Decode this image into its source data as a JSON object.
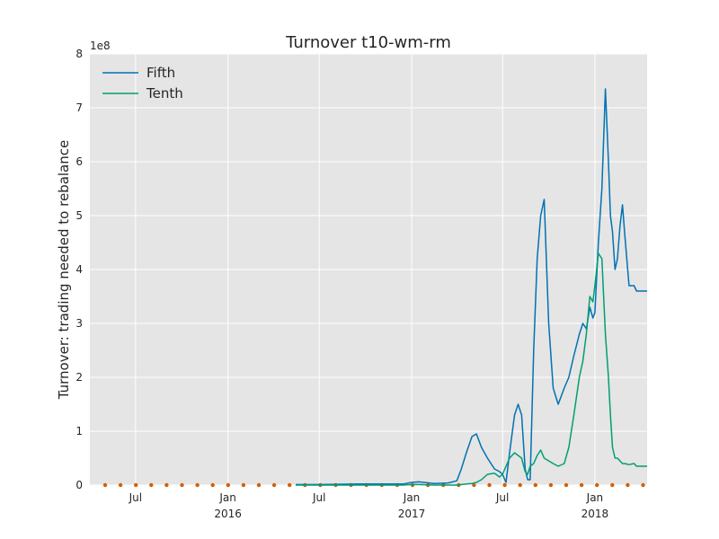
{
  "chart_data": {
    "type": "line",
    "title": "Turnover t10-wm-rm",
    "xlabel": "",
    "ylabel": "Turnover: trading needed to rebalance",
    "y_multiplier_label": "1e8",
    "ylim": [
      0,
      8
    ],
    "xlim": [
      "2015-04-01",
      "2018-04-15"
    ],
    "y_ticks": [
      0,
      1,
      2,
      3,
      4,
      5,
      6,
      7,
      8
    ],
    "x_ticks": [
      {
        "date": "2015-07-01",
        "label": "Jul",
        "sublabel": ""
      },
      {
        "date": "2016-01-01",
        "label": "Jan",
        "sublabel": "2016"
      },
      {
        "date": "2016-07-01",
        "label": "Jul",
        "sublabel": ""
      },
      {
        "date": "2017-01-01",
        "label": "Jan",
        "sublabel": "2017"
      },
      {
        "date": "2017-07-01",
        "label": "Jul",
        "sublabel": ""
      },
      {
        "date": "2018-01-01",
        "label": "Jan",
        "sublabel": "2018"
      }
    ],
    "grid": true,
    "legend_position": "top-left",
    "background_color": "#e5e5e5",
    "series": [
      {
        "name": "Fifth",
        "color": "#0072b2",
        "x": [
          "2016-05-15",
          "2016-07-01",
          "2016-09-15",
          "2016-11-01",
          "2016-12-15",
          "2017-01-01",
          "2017-01-15",
          "2017-02-15",
          "2017-03-15",
          "2017-04-01",
          "2017-04-10",
          "2017-04-20",
          "2017-05-01",
          "2017-05-10",
          "2017-05-20",
          "2017-06-01",
          "2017-06-15",
          "2017-06-25",
          "2017-07-01",
          "2017-07-08",
          "2017-07-15",
          "2017-07-25",
          "2017-08-01",
          "2017-08-08",
          "2017-08-15",
          "2017-08-20",
          "2017-08-25",
          "2017-09-01",
          "2017-09-08",
          "2017-09-15",
          "2017-09-22",
          "2017-10-01",
          "2017-10-10",
          "2017-10-20",
          "2017-11-01",
          "2017-11-10",
          "2017-11-20",
          "2017-12-01",
          "2017-12-08",
          "2017-12-15",
          "2017-12-22",
          "2017-12-28",
          "2018-01-01",
          "2018-01-08",
          "2018-01-15",
          "2018-01-22",
          "2018-01-28",
          "2018-02-01",
          "2018-02-05",
          "2018-02-10",
          "2018-02-15",
          "2018-02-20",
          "2018-02-25",
          "2018-03-01",
          "2018-03-10",
          "2018-03-20",
          "2018-03-25",
          "2018-04-01",
          "2018-04-10",
          "2018-04-15"
        ],
        "values": [
          0.01,
          0.01,
          0.02,
          0.02,
          0.02,
          0.05,
          0.06,
          0.03,
          0.04,
          0.08,
          0.3,
          0.6,
          0.9,
          0.95,
          0.7,
          0.5,
          0.3,
          0.25,
          0.2,
          0.05,
          0.6,
          1.3,
          1.5,
          1.3,
          0.3,
          0.1,
          0.1,
          2.5,
          4.2,
          5.0,
          5.3,
          3.0,
          1.8,
          1.5,
          1.8,
          2.0,
          2.4,
          2.8,
          3.0,
          2.9,
          3.3,
          3.1,
          3.2,
          4.5,
          5.5,
          7.35,
          6.0,
          5.0,
          4.7,
          4.0,
          4.2,
          4.8,
          5.2,
          4.7,
          3.7,
          3.7,
          3.6,
          3.6,
          3.6,
          3.6
        ]
      },
      {
        "name": "Tenth",
        "color": "#009e73",
        "x": [
          "2016-05-15",
          "2016-07-01",
          "2016-09-15",
          "2016-11-01",
          "2016-12-15",
          "2017-01-01",
          "2017-01-15",
          "2017-02-15",
          "2017-03-15",
          "2017-04-01",
          "2017-04-20",
          "2017-05-01",
          "2017-05-10",
          "2017-05-20",
          "2017-06-01",
          "2017-06-15",
          "2017-06-25",
          "2017-07-01",
          "2017-07-08",
          "2017-07-15",
          "2017-07-25",
          "2017-08-01",
          "2017-08-08",
          "2017-08-15",
          "2017-08-20",
          "2017-08-25",
          "2017-09-01",
          "2017-09-08",
          "2017-09-15",
          "2017-09-22",
          "2017-10-01",
          "2017-10-10",
          "2017-10-20",
          "2017-11-01",
          "2017-11-10",
          "2017-11-20",
          "2017-12-01",
          "2017-12-08",
          "2017-12-15",
          "2017-12-22",
          "2017-12-28",
          "2018-01-01",
          "2018-01-08",
          "2018-01-15",
          "2018-01-22",
          "2018-01-28",
          "2018-02-01",
          "2018-02-05",
          "2018-02-10",
          "2018-02-15",
          "2018-02-20",
          "2018-02-25",
          "2018-03-01",
          "2018-03-10",
          "2018-03-20",
          "2018-03-25",
          "2018-04-01",
          "2018-04-10",
          "2018-04-15"
        ],
        "values": [
          0.0,
          0.0,
          0.0,
          0.0,
          0.0,
          0.01,
          0.01,
          0.0,
          0.0,
          0.0,
          0.02,
          0.03,
          0.05,
          0.1,
          0.2,
          0.22,
          0.15,
          0.2,
          0.35,
          0.5,
          0.6,
          0.55,
          0.5,
          0.25,
          0.2,
          0.35,
          0.4,
          0.55,
          0.65,
          0.5,
          0.45,
          0.4,
          0.35,
          0.4,
          0.7,
          1.3,
          2.0,
          2.3,
          2.8,
          3.5,
          3.4,
          3.7,
          4.3,
          4.2,
          2.8,
          2.0,
          1.3,
          0.7,
          0.5,
          0.5,
          0.45,
          0.4,
          0.4,
          0.38,
          0.4,
          0.35,
          0.35,
          0.35,
          0.35
        ]
      },
      {
        "name": "",
        "color": "#d55e00",
        "x": [],
        "values": []
      }
    ]
  }
}
